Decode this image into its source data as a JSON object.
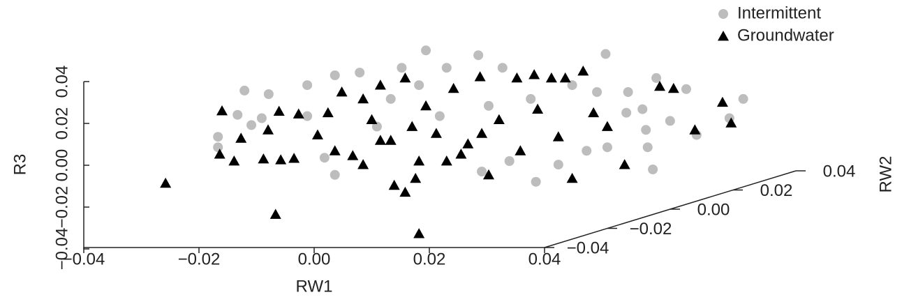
{
  "chart_data": {
    "type": "scatter3d",
    "xlabel": "RW1",
    "ylabel": "RW2",
    "zlabel": "R3",
    "xlim": [
      -0.04,
      0.04
    ],
    "xticks": [
      {
        "value": -0.04,
        "label": "−0.04"
      },
      {
        "value": -0.02,
        "label": "−0.02"
      },
      {
        "value": 0,
        "label": "0.00"
      },
      0.02,
      0.04
    ],
    "ylim": [
      -0.04,
      0.04
    ],
    "yticks": [
      {
        "value": -0.04,
        "label": "−0.04"
      },
      {
        "value": -0.02,
        "label": "−0.02"
      },
      {
        "value": 0,
        "label": "0.00"
      },
      0.02,
      0.04
    ],
    "zlim": [
      -0.04,
      0.04
    ],
    "zticks": [
      {
        "value": -0.04,
        "label": "−0.04"
      },
      {
        "value": -0.02,
        "label": "−0.02"
      },
      {
        "value": 0,
        "label": "0.00"
      },
      0.02,
      0.04
    ],
    "legend": "top-right",
    "series": [
      {
        "name": "Intermittent",
        "color": "#bdbdbd",
        "marker": "circle",
        "x": [
          0.0194,
          0.0285,
          0.0506,
          -0.0121,
          -0.0079,
          -0.0012,
          0.0036,
          0.0079,
          0.0152,
          0.023,
          0.0327,
          0.0594,
          0.0646,
          0.0745,
          0.0545,
          0.0491,
          -0.0133,
          -0.0109,
          -0.0167,
          -0.0167,
          -0.0091,
          -0.0012,
          0.0018,
          0.0036,
          0.0109,
          0.0218,
          0.0291,
          0.0339,
          0.0385,
          0.0424,
          0.0473,
          0.0509,
          0.0542,
          0.0576,
          0.0579,
          0.0588,
          0.0618,
          0.0664,
          0.0721,
          0.057,
          0.0303,
          0.0133,
          0.0182,
          0.0376,
          0.0448
        ],
        "values": [
          0.0549,
          0.0526,
          0.0532,
          0.0357,
          0.034,
          0.0383,
          0.043,
          0.0443,
          0.0466,
          0.0466,
          0.0466,
          0.0417,
          0.0364,
          0.0317,
          0.035,
          0.035,
          0.0241,
          0.0192,
          0.0136,
          0.0086,
          0.0225,
          0.0235,
          0.0036,
          -0.0046,
          0.0185,
          0.0235,
          -0.003,
          0.002,
          -0.0079,
          0.0003,
          0.0069,
          0.0086,
          0.0251,
          0.0169,
          0.0086,
          -0.002,
          0.0212,
          0.0145,
          0.0225,
          0.0268,
          0.0284,
          0.0317,
          0.0383,
          0.0317,
          0.0383
        ]
      },
      {
        "name": "Groundwater",
        "color": "#000000",
        "marker": "triangle",
        "x": [
          -0.0258,
          -0.0067,
          0.0182,
          -0.016,
          -0.0164,
          -0.0139,
          -0.0127,
          -0.0088,
          -0.008,
          -0.0058,
          -0.0061,
          -0.0027,
          -0.0035,
          0.0006,
          0.0024,
          0.0048,
          0.0067,
          0.0085,
          0.01,
          0.0115,
          0.0133,
          0.0139,
          0.0158,
          0.0176,
          0.0158,
          0.0194,
          0.0212,
          0.023,
          0.0242,
          0.0267,
          0.0288,
          0.0303,
          0.0321,
          0.0352,
          0.0358,
          0.0382,
          0.0388,
          0.0412,
          0.0424,
          0.0436,
          0.0448,
          0.0467,
          0.0485,
          0.0509,
          0.0539,
          0.06,
          0.0624,
          0.0661,
          0.0709,
          0.0724,
          0.0036,
          0.0085,
          0.0182,
          0.0255,
          0.0291,
          0.017,
          0.0115
        ],
        "values": [
          -0.0086,
          -0.0235,
          -0.0327,
          0.026,
          0.0053,
          0.002,
          0.0129,
          0.003,
          0.0169,
          0.0026,
          0.0258,
          0.0245,
          0.0033,
          0.0145,
          0.0251,
          0.035,
          0.0046,
          0.0317,
          0.0218,
          0.0383,
          0.0119,
          -0.0096,
          -0.0129,
          -0.0063,
          0.0417,
          0.0284,
          0.0152,
          0.002,
          0.0367,
          0.0102,
          0.0423,
          -0.0046,
          0.0218,
          0.0417,
          0.0069,
          0.0433,
          0.0268,
          0.0417,
          0.0136,
          0.0417,
          -0.0063,
          0.045,
          0.0251,
          0.0185,
          0.0003,
          0.0377,
          0.0367,
          0.0169,
          0.0301,
          0.0202,
          0.0069,
          0.0003,
          0.002,
          0.0053,
          0.0152,
          0.0185,
          0.0119
        ]
      }
    ]
  }
}
